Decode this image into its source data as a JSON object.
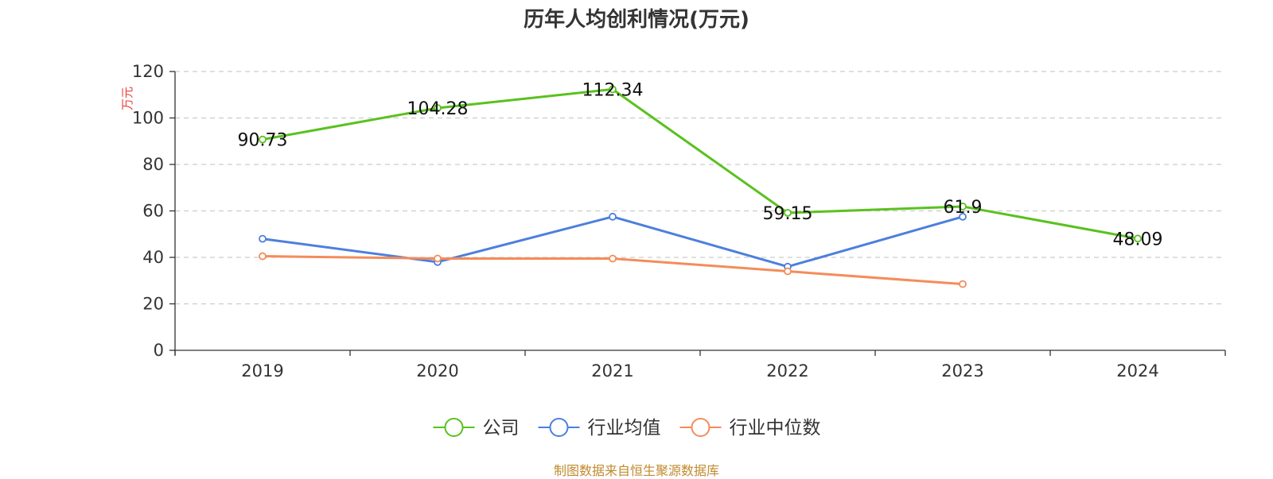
{
  "chart_data": {
    "type": "line",
    "title": "历年人均创利情况(万元)",
    "ylabel": "万元",
    "ylim": [
      0,
      120
    ],
    "yticks": [
      0,
      20,
      40,
      60,
      80,
      100,
      120
    ],
    "categories": [
      "2019",
      "2020",
      "2021",
      "2022",
      "2023",
      "2024"
    ],
    "grid": true,
    "legend_position": "bottom",
    "series": [
      {
        "name": "公司",
        "color": "#5ac11f",
        "values": [
          90.73,
          104.28,
          112.34,
          59.15,
          61.9,
          48.09
        ],
        "show_labels": true
      },
      {
        "name": "行业均值",
        "color": "#4d7fdd",
        "values": [
          48,
          38,
          57.5,
          36,
          57.5,
          null
        ],
        "show_labels": false
      },
      {
        "name": "行业中位数",
        "color": "#f48c5a",
        "values": [
          40.5,
          39.5,
          39.5,
          34,
          28.5,
          null
        ],
        "show_labels": false
      }
    ],
    "data_labels": [
      "90.73",
      "104.28",
      "112.34",
      "59.15",
      "61.9",
      "48.09"
    ]
  },
  "colors": {
    "unit_label": "#e8403a",
    "axis": "#333333",
    "grid": "#cccccc",
    "source": "#c08a2e"
  },
  "source_text": "制图数据来自恒生聚源数据库"
}
